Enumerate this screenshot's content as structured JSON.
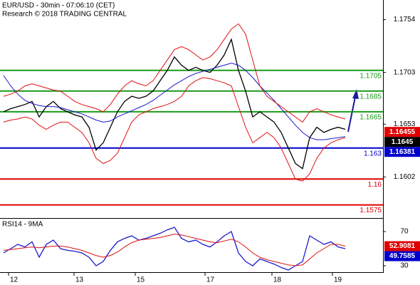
{
  "header": {
    "title": "EUR/USD - 30min - 07:06:10 (CET)",
    "copyright": "Research © 2018 TRADING CENTRAL"
  },
  "chart_data": [
    {
      "type": "line",
      "x": [
        0,
        1,
        2,
        3,
        4,
        5,
        6,
        7,
        8,
        9,
        10,
        11,
        12,
        13,
        14,
        15,
        16,
        17,
        18,
        19,
        20,
        21,
        22,
        23,
        24,
        25,
        26,
        27,
        28,
        29,
        30,
        31,
        32,
        33,
        34,
        35,
        36,
        37,
        38,
        39,
        40,
        41,
        42,
        43,
        44,
        45,
        46,
        47,
        48
      ],
      "series": [
        {
          "color": "#000000",
          "values": [
            1.1665,
            1.1668,
            1.167,
            1.1672,
            1.1675,
            1.166,
            1.167,
            1.1675,
            1.1668,
            1.1665,
            1.1662,
            1.166,
            1.165,
            1.1628,
            1.1635,
            1.165,
            1.1665,
            1.1675,
            1.168,
            1.1678,
            1.168,
            1.1685,
            1.1695,
            1.1705,
            1.1718,
            1.171,
            1.1705,
            1.1708,
            1.1705,
            1.1703,
            1.171,
            1.172,
            1.1735,
            1.1705,
            1.1685,
            1.166,
            1.1665,
            1.166,
            1.1655,
            1.1645,
            1.163,
            1.1615,
            1.161,
            1.164,
            1.165,
            1.1645,
            1.1648,
            1.165,
            1.1648
          ]
        },
        {
          "color": "#1a1acc",
          "values": [
            1.17,
            1.169,
            1.1682,
            1.1676,
            1.1673,
            1.1671,
            1.167,
            1.167,
            1.1669,
            1.1667,
            1.1665,
            1.1663,
            1.166,
            1.1657,
            1.1655,
            1.1656,
            1.166,
            1.1663,
            1.1666,
            1.1669,
            1.1672,
            1.1676,
            1.1681,
            1.1686,
            1.1691,
            1.1695,
            1.1699,
            1.1702,
            1.1704,
            1.1706,
            1.1708,
            1.171,
            1.1712,
            1.171,
            1.1705,
            1.1698,
            1.169,
            1.1683,
            1.1676,
            1.1668,
            1.166,
            1.1652,
            1.1645,
            1.164,
            1.1638,
            1.1638,
            1.1639,
            1.164,
            1.1641
          ]
        },
        {
          "color": "#e01010",
          "values": [
            1.168,
            1.1682,
            1.1685,
            1.169,
            1.1692,
            1.169,
            1.1688,
            1.1686,
            1.1685,
            1.168,
            1.1675,
            1.1672,
            1.167,
            1.1668,
            1.1665,
            1.1672,
            1.1682,
            1.169,
            1.1695,
            1.1692,
            1.169,
            1.1695,
            1.1705,
            1.1715,
            1.1725,
            1.1728,
            1.1725,
            1.172,
            1.1715,
            1.1718,
            1.1725,
            1.1735,
            1.1745,
            1.175,
            1.174,
            1.1715,
            1.169,
            1.168,
            1.1675,
            1.167,
            1.1665,
            1.166,
            1.1655,
            1.1665,
            1.1668,
            1.1665,
            1.1662,
            1.166,
            1.1658
          ]
        },
        {
          "color": "#e01010",
          "values": [
            1.1655,
            1.1657,
            1.1658,
            1.166,
            1.1658,
            1.1652,
            1.1648,
            1.1652,
            1.1655,
            1.1655,
            1.165,
            1.1645,
            1.1635,
            1.162,
            1.1615,
            1.1618,
            1.1625,
            1.164,
            1.1655,
            1.1662,
            1.1665,
            1.1668,
            1.167,
            1.1672,
            1.1675,
            1.168,
            1.169,
            1.1695,
            1.1698,
            1.1697,
            1.1695,
            1.1693,
            1.169,
            1.167,
            1.165,
            1.1635,
            1.164,
            1.1645,
            1.164,
            1.163,
            1.1615,
            1.16,
            1.1598,
            1.1605,
            1.162,
            1.163,
            1.1635,
            1.1638,
            1.164
          ]
        }
      ],
      "levels": [
        {
          "value": 1.1705,
          "color": "#1a9c1a"
        },
        {
          "value": 1.1685,
          "color": "#1a9c1a"
        },
        {
          "value": 1.1665,
          "color": "#1a9c1a"
        },
        {
          "value": 1.163,
          "color": "#0000cc"
        },
        {
          "value": 1.16,
          "color": "#e00000"
        },
        {
          "value": 1.1575,
          "color": "#e00000"
        }
      ],
      "markers": [
        {
          "value": 1.16455,
          "color": "#e00000"
        },
        {
          "value": 1.1645,
          "color": "#000000"
        },
        {
          "value": 1.16381,
          "color": "#0000cc"
        }
      ],
      "xlim": [
        -0.5,
        53.3
      ],
      "xticks": [
        {
          "value": 0.7,
          "label": "12"
        },
        {
          "value": 9.9,
          "label": "13"
        },
        {
          "value": 18.5,
          "label": "15"
        },
        {
          "value": 28.3,
          "label": "17"
        },
        {
          "value": 37.7,
          "label": "18"
        },
        {
          "value": 46.2,
          "label": "19"
        }
      ],
      "ylim": [
        1.1563,
        1.1773
      ],
      "yticks": [
        1.1754,
        1.1703,
        1.1653,
        1.1602
      ]
    },
    {
      "type": "line",
      "title": "RSI14 - 9MA",
      "x": [
        0,
        1,
        2,
        3,
        4,
        5,
        6,
        7,
        8,
        9,
        10,
        11,
        12,
        13,
        14,
        15,
        16,
        17,
        18,
        19,
        20,
        21,
        22,
        23,
        24,
        25,
        26,
        27,
        28,
        29,
        30,
        31,
        32,
        33,
        34,
        35,
        36,
        37,
        38,
        39,
        40,
        41,
        42,
        43,
        44,
        45,
        46,
        47,
        48
      ],
      "series": [
        {
          "color": "#1a1acc",
          "values": [
            45,
            50,
            55,
            52,
            58,
            40,
            55,
            60,
            50,
            48,
            47,
            45,
            40,
            30,
            35,
            48,
            58,
            62,
            65,
            60,
            62,
            65,
            68,
            72,
            75,
            62,
            58,
            60,
            55,
            52,
            58,
            65,
            70,
            45,
            35,
            30,
            38,
            35,
            32,
            28,
            25,
            30,
            35,
            65,
            60,
            55,
            58,
            52,
            50
          ]
        },
        {
          "color": "#e01010",
          "values": [
            48,
            49,
            50,
            51,
            52,
            51,
            52,
            53,
            53,
            52,
            50,
            48,
            45,
            42,
            40,
            42,
            46,
            52,
            57,
            60,
            61,
            62,
            63,
            65,
            67,
            66,
            64,
            62,
            60,
            58,
            57,
            59,
            61,
            58,
            52,
            45,
            40,
            37,
            35,
            33,
            31,
            30,
            31,
            38,
            45,
            50,
            55,
            55,
            53
          ]
        }
      ],
      "markers": [
        {
          "value": 52.9081,
          "color": "#e00000"
        },
        {
          "value": 49.7585,
          "color": "#0000cc"
        }
      ],
      "xlim": [
        -0.5,
        53.3
      ],
      "ylim": [
        22.5,
        84.2
      ],
      "yticks": [
        70,
        30
      ]
    }
  ]
}
